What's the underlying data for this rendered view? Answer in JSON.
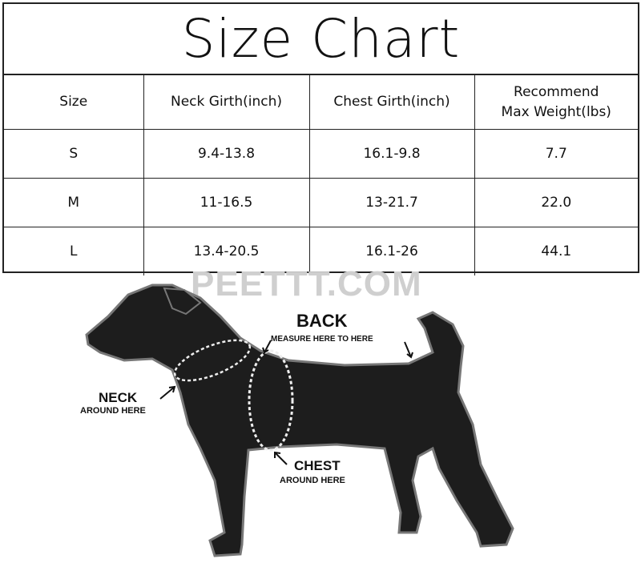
{
  "title": "Size Chart",
  "table": {
    "headers": [
      "Size",
      "Neck Girth(inch)",
      "Chest Girth(inch)",
      "Recommend Max Weight(lbs)"
    ],
    "rows": [
      [
        "S",
        "9.4-13.8",
        "16.1-9.8",
        "7.7"
      ],
      [
        "M",
        "11-16.5",
        "13-21.7",
        "22.0"
      ],
      [
        "L",
        "13.4-20.5",
        "16.1-26",
        "44.1"
      ]
    ]
  },
  "watermark": "PEETTT.COM",
  "diagram": {
    "back_title": "BACK",
    "back_sub": "MEASURE HERE TO HERE",
    "neck_title": "NECK",
    "neck_sub": "AROUND HERE",
    "chest_title": "CHEST",
    "chest_sub": "AROUND HERE"
  }
}
